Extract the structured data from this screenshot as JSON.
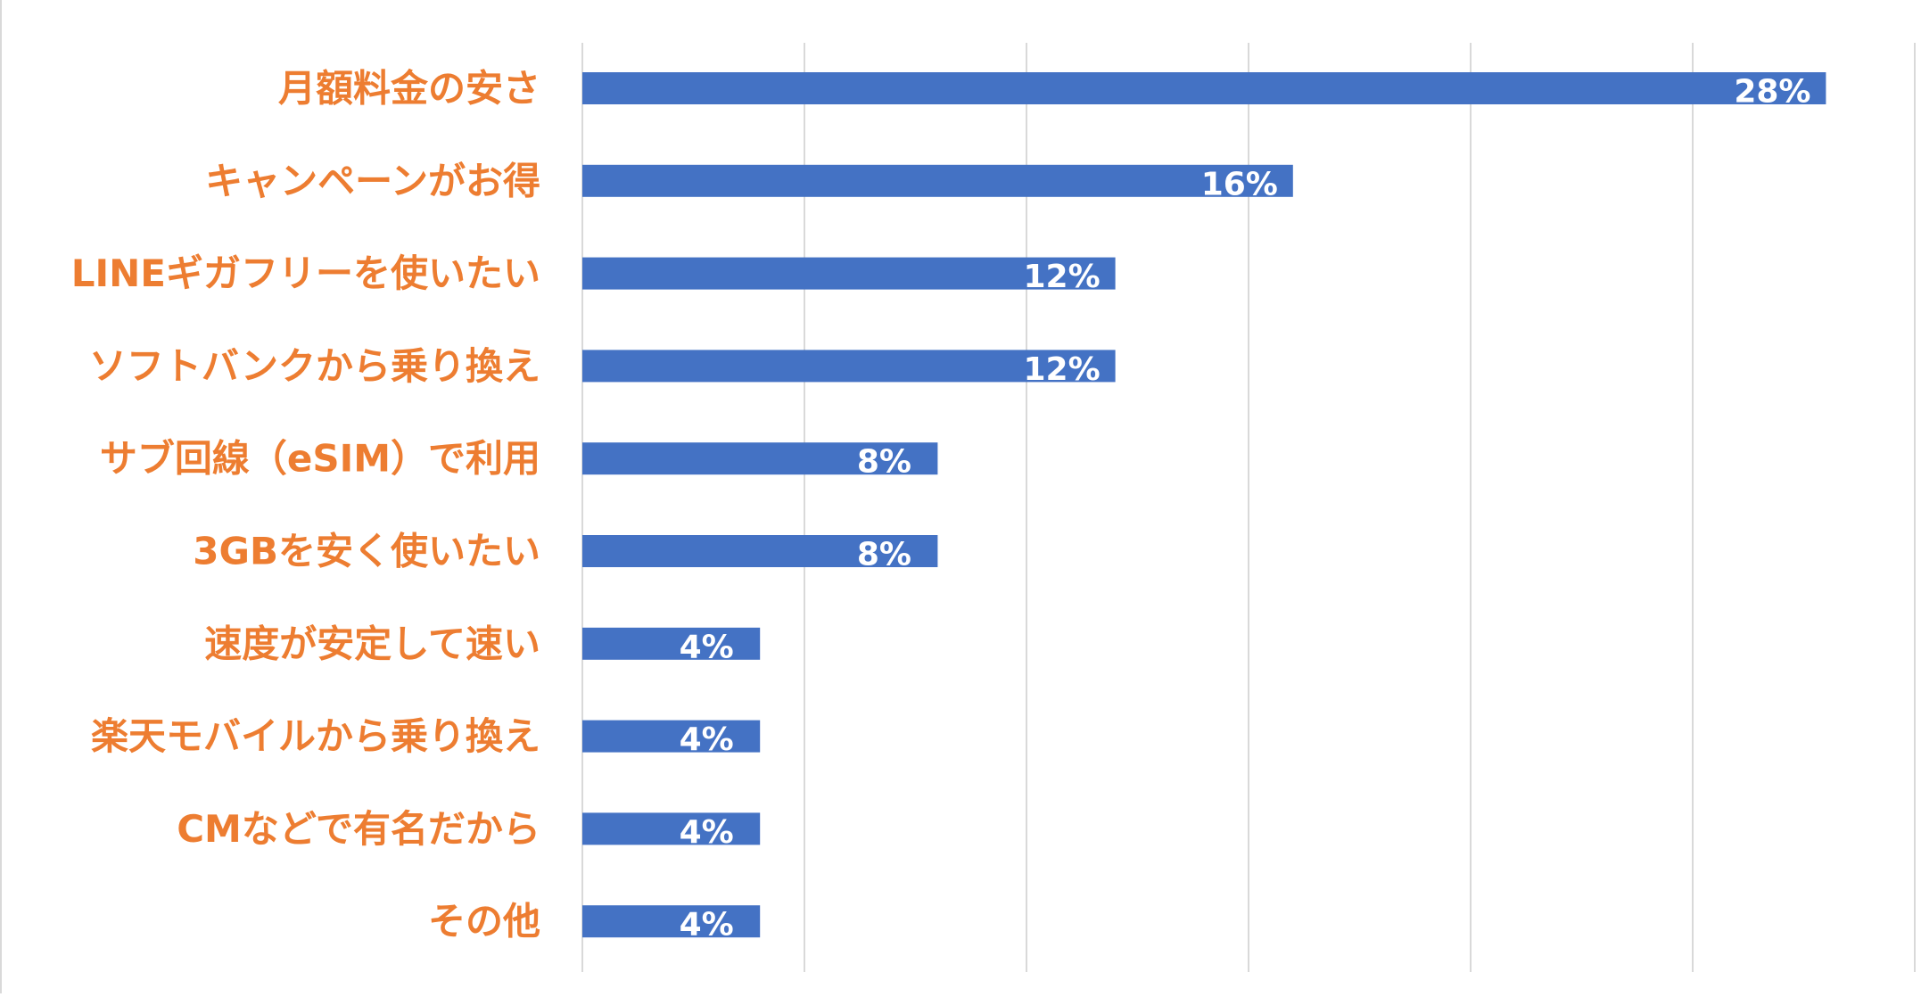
{
  "chart_data": {
    "type": "bar",
    "orientation": "horizontal",
    "categories": [
      "月額料金の安さ",
      "キャンペーンがお得",
      "LINEギガフリーを使いたい",
      "ソフトバンクから乗り換え",
      "サブ回線（eSIM）で利用",
      "3GBを安く使いたい",
      "速度が安定して速い",
      "楽天モバイルから乗り換え",
      "CMなどで有名だから",
      "その他"
    ],
    "values": [
      28,
      16,
      12,
      12,
      8,
      8,
      4,
      4,
      4,
      4
    ],
    "data_labels": [
      "28%",
      "16%",
      "12%",
      "12%",
      "8%",
      "8%",
      "4%",
      "4%",
      "4%",
      "4%"
    ],
    "unit": "%",
    "xlim": [
      0,
      30
    ],
    "gridlines": [
      0,
      5,
      10,
      15,
      20,
      25,
      30
    ],
    "grid": true,
    "legend": "none",
    "title": "",
    "xlabel": "",
    "ylabel": ""
  },
  "colors": {
    "bar": "#4472C4",
    "category_text": "#ED7D31",
    "data_label": "#FFFFFF",
    "grid": "#D9D9D9",
    "background": "#FFFFFF"
  }
}
